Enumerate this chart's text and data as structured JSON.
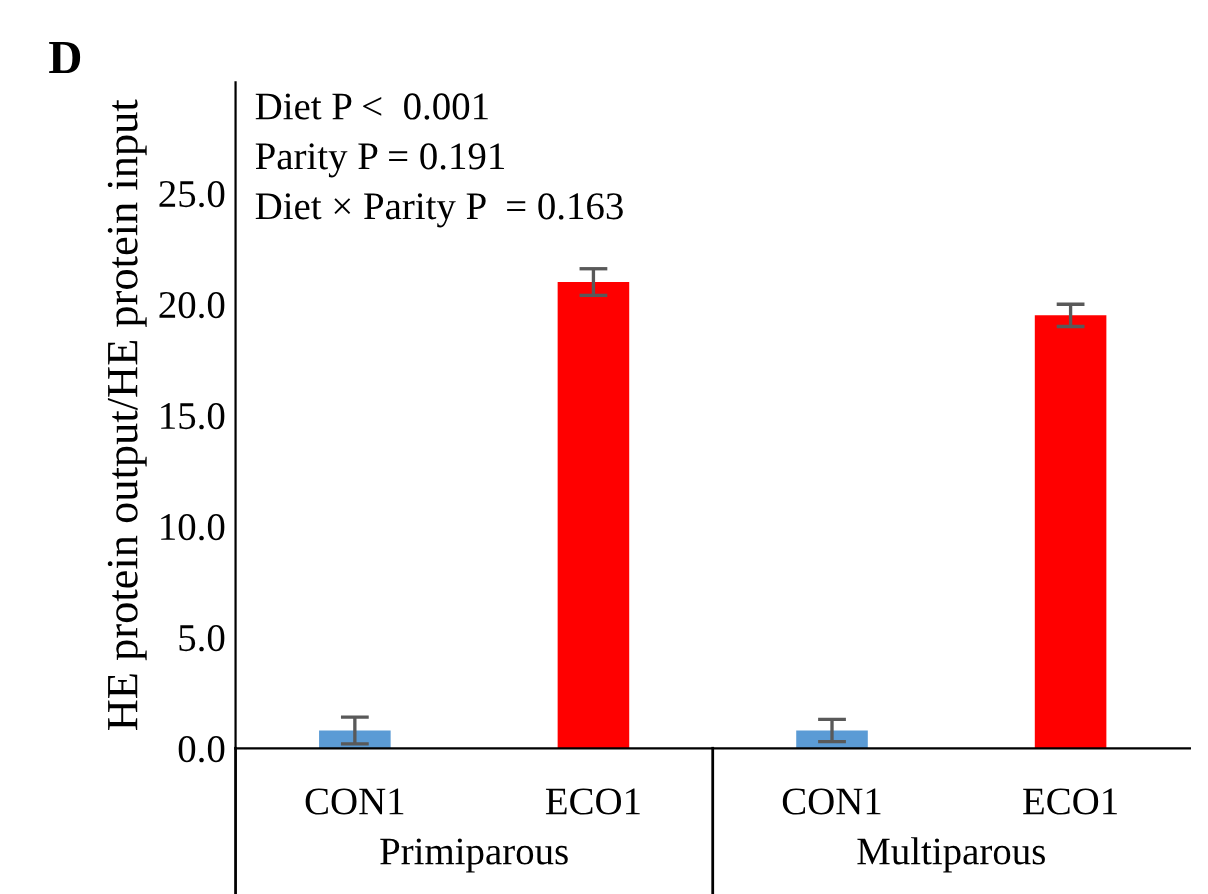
{
  "chart_data": {
    "type": "bar",
    "title": "D",
    "ylabel": "HE protein output/HE protein input",
    "categories": [
      "CON1",
      "ECO1",
      "CON1",
      "ECO1"
    ],
    "values": [
      0.8,
      21.0,
      0.8,
      19.5
    ],
    "errors": [
      0.6,
      0.6,
      0.5,
      0.5
    ],
    "colors": [
      "#5b9bd5",
      "#ff0000",
      "#5b9bd5",
      "#ff0000"
    ],
    "ylim": [
      0,
      30
    ],
    "yticks": [
      {
        "value": 0,
        "label": "0.0"
      },
      {
        "value": 5,
        "label": "5.0"
      },
      {
        "value": 10,
        "label": "10.0"
      },
      {
        "value": 15,
        "label": "15.0"
      },
      {
        "value": 20,
        "label": "20.0"
      },
      {
        "value": 25,
        "label": "25.0"
      }
    ],
    "grid": false,
    "annotations": [
      "Diet P <  0.001",
      "Parity P = 0.191",
      "Diet × Parity P  = 0.163",
      "Primiparous",
      "Multiparous"
    ]
  }
}
